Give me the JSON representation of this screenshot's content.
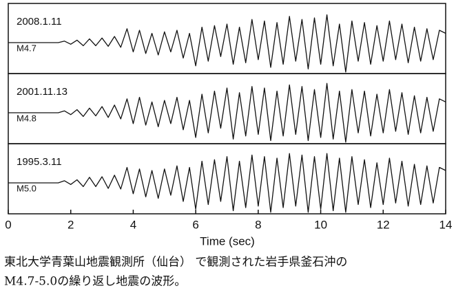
{
  "chart_data": {
    "type": "line",
    "xlabel": "Time (sec)",
    "xlim": [
      0,
      14
    ],
    "xticks": [
      0,
      2,
      4,
      6,
      8,
      10,
      12,
      14
    ],
    "ylim": [
      -1,
      1
    ],
    "color": "#111111",
    "x": [
      0,
      0.2,
      0.4,
      0.6,
      0.8,
      1,
      1.2,
      1.4,
      1.6,
      1.8,
      2,
      2.2,
      2.4,
      2.6,
      2.8,
      3,
      3.2,
      3.4,
      3.6,
      3.8,
      4,
      4.2,
      4.4,
      4.6,
      4.8,
      5,
      5.2,
      5.4,
      5.6,
      5.8,
      6,
      6.2,
      6.4,
      6.6,
      6.8,
      7,
      7.2,
      7.4,
      7.6,
      7.8,
      8,
      8.2,
      8.4,
      8.6,
      8.8,
      9,
      9.2,
      9.4,
      9.6,
      9.8,
      10,
      10.2,
      10.4,
      10.6,
      10.8,
      11,
      11.2,
      11.4,
      11.6,
      11.8,
      12,
      12.2,
      12.4,
      12.6,
      12.8,
      13,
      13.2,
      13.4,
      13.6,
      13.8,
      14
    ],
    "series": [
      {
        "name": "2008.1.11",
        "magnitude": "M4.7",
        "values": [
          0,
          0,
          0,
          0,
          0,
          0,
          0,
          0,
          0,
          0.05,
          -0.05,
          0.08,
          -0.1,
          0.12,
          -0.1,
          0.15,
          -0.12,
          0.2,
          -0.15,
          0.45,
          -0.3,
          0.4,
          -0.35,
          0.3,
          -0.4,
          0.35,
          -0.3,
          0.4,
          -0.5,
          0.3,
          -0.75,
          0.5,
          -0.6,
          0.55,
          -0.45,
          0.6,
          -0.7,
          0.5,
          -0.65,
          0.75,
          -0.55,
          0.7,
          -0.8,
          0.65,
          -0.7,
          0.85,
          -0.6,
          0.75,
          -0.85,
          0.8,
          -0.7,
          0.9,
          -0.75,
          0.6,
          -0.95,
          0.7,
          -0.6,
          0.65,
          -0.7,
          0.55,
          -0.6,
          0.7,
          -0.55,
          0.6,
          -0.65,
          0.5,
          -0.6,
          0.45,
          -0.55,
          0.4,
          0.3
        ]
      },
      {
        "name": "2001.11.13",
        "magnitude": "M4.8",
        "values": [
          0,
          0,
          0,
          0,
          0,
          0,
          0,
          0,
          0,
          0.06,
          -0.06,
          0.1,
          -0.12,
          0.15,
          -0.1,
          0.2,
          -0.15,
          0.25,
          -0.2,
          0.45,
          -0.35,
          0.5,
          -0.4,
          0.35,
          -0.45,
          0.4,
          -0.35,
          0.5,
          -0.55,
          0.4,
          -0.8,
          0.6,
          -0.65,
          0.7,
          -0.5,
          0.8,
          -0.85,
          0.65,
          -0.75,
          0.85,
          -0.7,
          0.8,
          -0.9,
          0.7,
          -0.75,
          0.9,
          -0.7,
          0.85,
          -0.9,
          0.75,
          -0.8,
          0.95,
          -0.85,
          0.7,
          -0.95,
          0.75,
          -0.65,
          0.7,
          -0.75,
          0.6,
          -0.65,
          0.75,
          -0.6,
          0.65,
          -0.7,
          0.55,
          -0.65,
          0.5,
          -0.6,
          0.45,
          0.35
        ]
      },
      {
        "name": "1995.3.11",
        "magnitude": "M5.0",
        "values": [
          0,
          0,
          0,
          0,
          0,
          0,
          0,
          0,
          0,
          0.07,
          -0.05,
          0.1,
          -0.12,
          0.18,
          -0.12,
          0.2,
          -0.18,
          0.25,
          -0.2,
          0.5,
          -0.35,
          0.45,
          -0.45,
          0.4,
          -0.5,
          0.45,
          -0.4,
          0.55,
          -0.6,
          0.5,
          -0.85,
          0.7,
          -0.7,
          0.75,
          -0.6,
          0.85,
          -0.9,
          0.7,
          -0.8,
          0.9,
          -0.75,
          0.85,
          -0.95,
          0.8,
          -0.8,
          0.95,
          -0.75,
          0.9,
          -0.95,
          0.85,
          -0.85,
          0.95,
          -0.9,
          0.8,
          -0.95,
          0.85,
          -0.7,
          0.75,
          -0.8,
          0.65,
          -0.7,
          0.8,
          -0.65,
          0.7,
          -0.75,
          0.6,
          -0.7,
          0.55,
          -0.65,
          0.5,
          0.4
        ]
      }
    ]
  },
  "caption": [
    "東北大学青葉山地震観測所（仙台） で観測された岩手県釜石沖の",
    "M4.7-5.0の繰り返し地震の波形。"
  ]
}
